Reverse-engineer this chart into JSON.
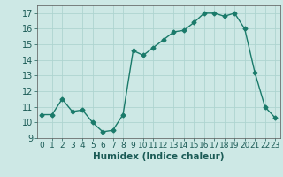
{
  "x": [
    0,
    1,
    2,
    3,
    4,
    5,
    6,
    7,
    8,
    9,
    10,
    11,
    12,
    13,
    14,
    15,
    16,
    17,
    18,
    19,
    20,
    21,
    22,
    23
  ],
  "y": [
    10.5,
    10.5,
    11.5,
    10.7,
    10.8,
    10.0,
    9.4,
    9.5,
    10.5,
    14.6,
    14.3,
    14.8,
    15.3,
    15.8,
    15.9,
    16.4,
    17.0,
    17.0,
    16.8,
    17.0,
    16.0,
    13.2,
    11.0,
    10.3
  ],
  "line_color": "#1a7a6a",
  "marker": "D",
  "marker_size": 2.5,
  "bg_color": "#cde8e5",
  "grid_color": "#aed4d0",
  "xlabel": "Humidex (Indice chaleur)",
  "ylim": [
    9,
    17.5
  ],
  "xlim": [
    -0.5,
    23.5
  ],
  "yticks": [
    9,
    10,
    11,
    12,
    13,
    14,
    15,
    16,
    17
  ],
  "xticks": [
    0,
    1,
    2,
    3,
    4,
    5,
    6,
    7,
    8,
    9,
    10,
    11,
    12,
    13,
    14,
    15,
    16,
    17,
    18,
    19,
    20,
    21,
    22,
    23
  ],
  "tick_fontsize": 6.5,
  "label_fontsize": 7.5,
  "ytick_fontsize": 7
}
